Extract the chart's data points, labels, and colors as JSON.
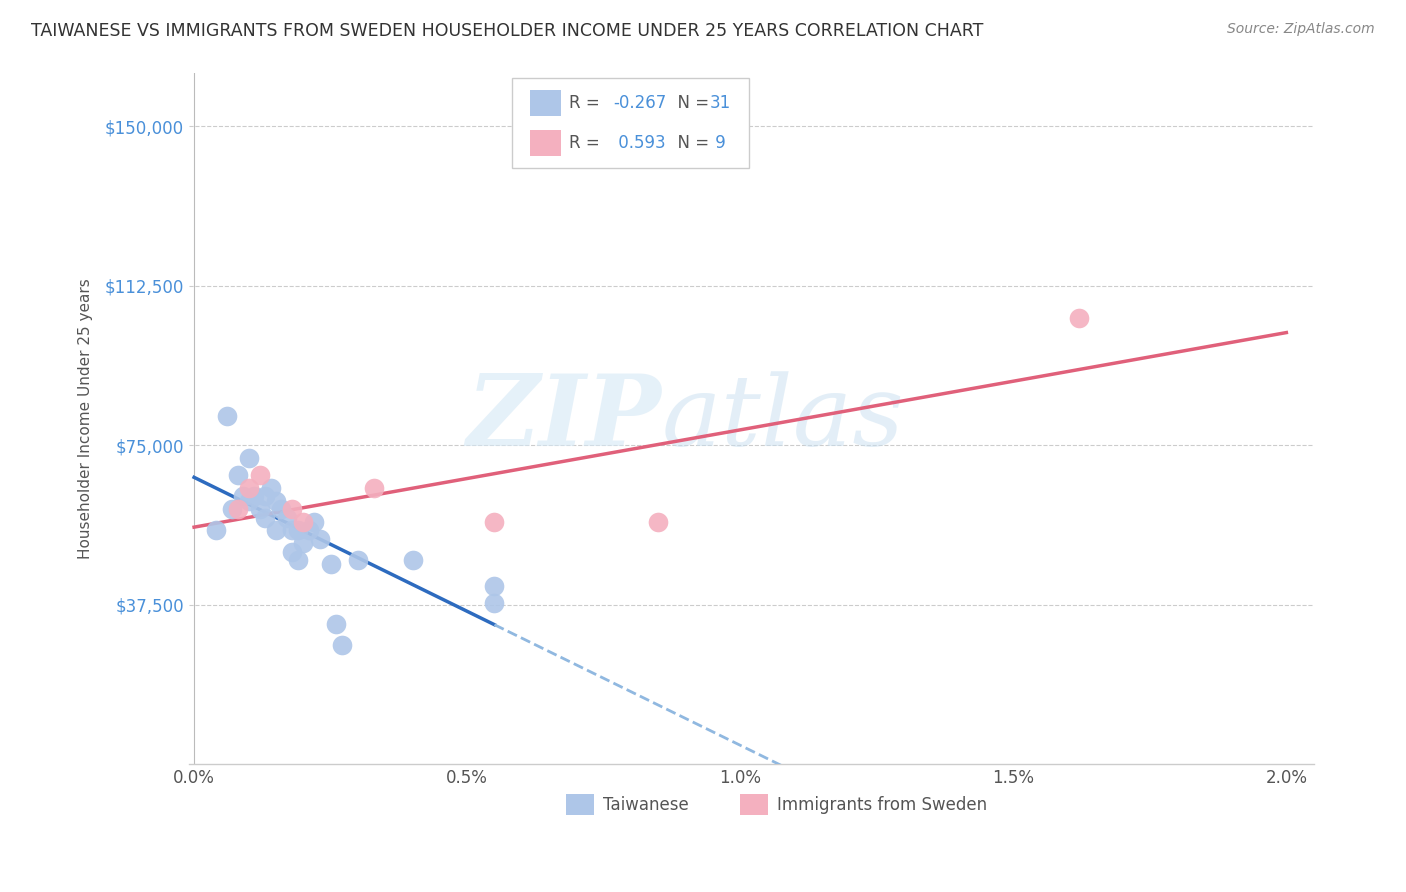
{
  "title": "TAIWANESE VS IMMIGRANTS FROM SWEDEN HOUSEHOLDER INCOME UNDER 25 YEARS CORRELATION CHART",
  "source": "Source: ZipAtlas.com",
  "ylabel": "Householder Income Under 25 years",
  "xlabel_ticks": [
    "0.0%",
    "0.5%",
    "1.0%",
    "1.5%",
    "2.0%"
  ],
  "xlabel_vals": [
    0.0,
    0.5,
    1.0,
    1.5,
    2.0
  ],
  "ytick_labels": [
    "$37,500",
    "$75,000",
    "$112,500",
    "$150,000"
  ],
  "ytick_vals": [
    37500,
    75000,
    112500,
    150000
  ],
  "ylim": [
    0,
    162500
  ],
  "xlim": [
    0.0,
    2.05
  ],
  "taiwanese_x": [
    0.04,
    0.06,
    0.07,
    0.08,
    0.09,
    0.1,
    0.1,
    0.11,
    0.12,
    0.13,
    0.13,
    0.14,
    0.15,
    0.15,
    0.16,
    0.17,
    0.18,
    0.18,
    0.19,
    0.19,
    0.2,
    0.21,
    0.22,
    0.23,
    0.25,
    0.26,
    0.27,
    0.3,
    0.4,
    0.55,
    0.55
  ],
  "taiwanese_y": [
    55000,
    82000,
    60000,
    68000,
    63000,
    72000,
    62000,
    63000,
    60000,
    63000,
    58000,
    65000,
    62000,
    55000,
    60000,
    58000,
    55000,
    50000,
    55000,
    48000,
    52000,
    55000,
    57000,
    53000,
    47000,
    33000,
    28000,
    48000,
    48000,
    42000,
    38000
  ],
  "sweden_x": [
    0.08,
    0.1,
    0.12,
    0.18,
    0.2,
    0.33,
    0.55,
    0.85,
    1.62
  ],
  "sweden_y": [
    60000,
    65000,
    68000,
    60000,
    57000,
    65000,
    57000,
    57000,
    105000
  ],
  "taiwan_R": -0.267,
  "taiwan_N": 31,
  "sweden_R": 0.593,
  "sweden_N": 9,
  "taiwan_color": "#aec6e8",
  "taiwan_line_color": "#2d6bbf",
  "taiwan_line_dashed_color": "#90b8e0",
  "sweden_color": "#f4b0bf",
  "sweden_line_color": "#e0607a",
  "background_color": "#ffffff",
  "watermark_zip": "ZIP",
  "watermark_atlas": "atlas",
  "legend_labels": [
    "Taiwanese",
    "Immigrants from Sweden"
  ]
}
